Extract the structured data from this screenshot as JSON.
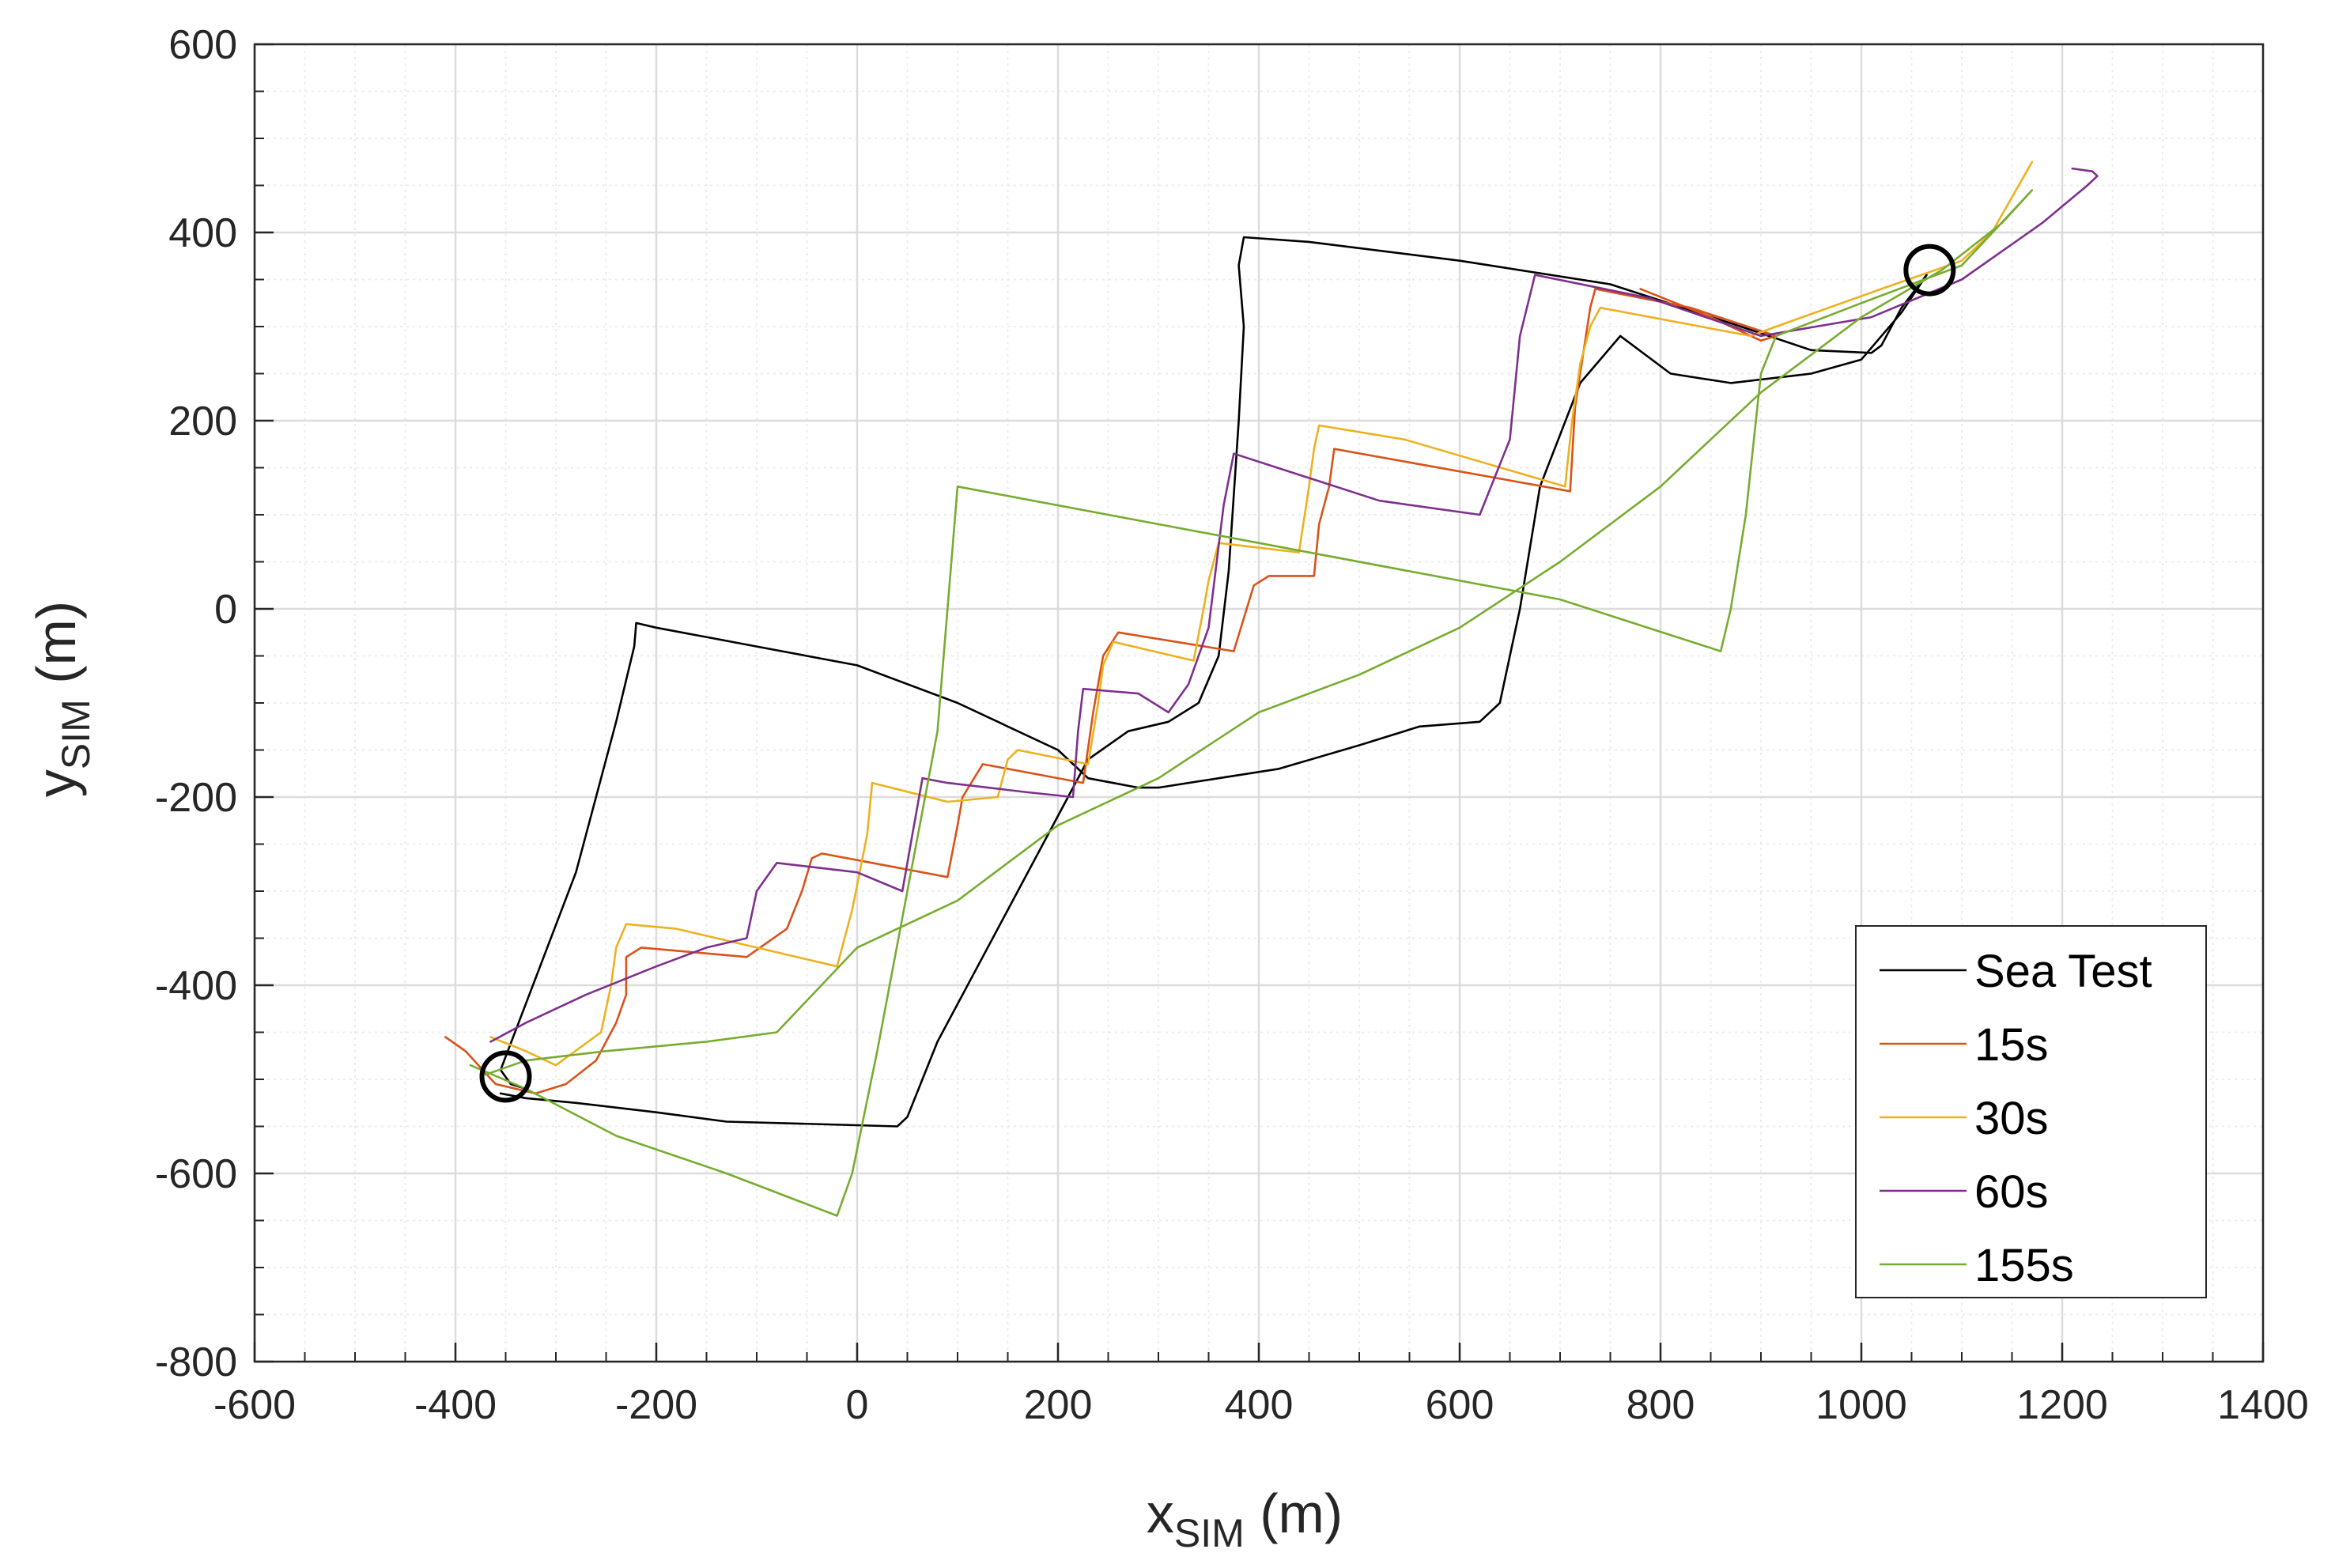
{
  "chart_data": {
    "type": "line",
    "title": "",
    "xlabel": {
      "base": "x",
      "sub": "SIM",
      "unit": " (m)"
    },
    "ylabel": {
      "base": "y",
      "sub": "SIM",
      "unit": " (m)"
    },
    "xlim": [
      -600,
      1400
    ],
    "ylim": [
      -800,
      600
    ],
    "xticks": [
      -600,
      -400,
      -200,
      0,
      200,
      400,
      600,
      800,
      1000,
      1200,
      1400
    ],
    "yticks": [
      -800,
      -600,
      -400,
      -200,
      0,
      200,
      400,
      600
    ],
    "xtick_labels": [
      "-600",
      "-400",
      "-200",
      "0",
      "200",
      "400",
      "600",
      "800",
      "1000",
      "1200",
      "1400"
    ],
    "ytick_labels": [
      "-800",
      "-600",
      "-400",
      "-200",
      "0",
      "200",
      "400",
      "600"
    ],
    "grid": true,
    "minor_grid": true,
    "legend_position": "bottom-right",
    "markers": [
      {
        "shape": "circle",
        "x": -350,
        "y": -497,
        "color": "#000000"
      },
      {
        "shape": "circle",
        "x": 1068,
        "y": 360,
        "color": "#000000"
      }
    ],
    "series": [
      {
        "name": "Sea Test",
        "color": "#000000",
        "points": [
          [
            -355,
            -515
          ],
          [
            -330,
            -520
          ],
          [
            -280,
            -525
          ],
          [
            -200,
            -535
          ],
          [
            -130,
            -545
          ],
          [
            -60,
            -547
          ],
          [
            40,
            -550
          ],
          [
            50,
            -540
          ],
          [
            80,
            -460
          ],
          [
            120,
            -380
          ],
          [
            160,
            -300
          ],
          [
            190,
            -240
          ],
          [
            230,
            -160
          ],
          [
            270,
            -130
          ],
          [
            310,
            -120
          ],
          [
            340,
            -100
          ],
          [
            360,
            -50
          ],
          [
            370,
            40
          ],
          [
            380,
            200
          ],
          [
            385,
            300
          ],
          [
            380,
            365
          ],
          [
            385,
            395
          ],
          [
            450,
            390
          ],
          [
            600,
            370
          ],
          [
            750,
            345
          ],
          [
            880,
            300
          ],
          [
            950,
            275
          ],
          [
            1010,
            272
          ],
          [
            1020,
            280
          ],
          [
            1040,
            320
          ],
          [
            1065,
            355
          ],
          [
            1040,
            315
          ],
          [
            1000,
            265
          ],
          [
            950,
            250
          ],
          [
            870,
            240
          ],
          [
            810,
            250
          ],
          [
            760,
            290
          ],
          [
            720,
            240
          ],
          [
            680,
            130
          ],
          [
            660,
            0
          ],
          [
            640,
            -100
          ],
          [
            620,
            -120
          ],
          [
            560,
            -125
          ],
          [
            500,
            -145
          ],
          [
            420,
            -170
          ],
          [
            360,
            -180
          ],
          [
            300,
            -190
          ],
          [
            280,
            -190
          ],
          [
            230,
            -180
          ],
          [
            200,
            -150
          ],
          [
            100,
            -100
          ],
          [
            0,
            -60
          ],
          [
            -100,
            -40
          ],
          [
            -200,
            -20
          ],
          [
            -220,
            -15
          ],
          [
            -222,
            -40
          ],
          [
            -240,
            -120
          ],
          [
            -280,
            -280
          ],
          [
            -330,
            -420
          ],
          [
            -355,
            -490
          ],
          [
            -345,
            -505
          ],
          [
            -330,
            -510
          ]
        ]
      },
      {
        "name": "15s",
        "color": "#d95319",
        "points": [
          [
            -410,
            -455
          ],
          [
            -390,
            -470
          ],
          [
            -360,
            -505
          ],
          [
            -320,
            -515
          ],
          [
            -290,
            -505
          ],
          [
            -260,
            -480
          ],
          [
            -240,
            -440
          ],
          [
            -230,
            -410
          ],
          [
            -230,
            -370
          ],
          [
            -215,
            -360
          ],
          [
            -110,
            -370
          ],
          [
            -70,
            -340
          ],
          [
            -55,
            -300
          ],
          [
            -45,
            -265
          ],
          [
            -35,
            -260
          ],
          [
            90,
            -285
          ],
          [
            100,
            -230
          ],
          [
            105,
            -200
          ],
          [
            125,
            -165
          ],
          [
            225,
            -185
          ],
          [
            235,
            -110
          ],
          [
            245,
            -50
          ],
          [
            260,
            -25
          ],
          [
            375,
            -45
          ],
          [
            385,
            -10
          ],
          [
            395,
            25
          ],
          [
            410,
            35
          ],
          [
            455,
            35
          ],
          [
            460,
            90
          ],
          [
            470,
            130
          ],
          [
            475,
            170
          ],
          [
            710,
            125
          ],
          [
            715,
            215
          ],
          [
            730,
            320
          ],
          [
            735,
            340
          ],
          [
            830,
            320
          ],
          [
            915,
            290
          ],
          [
            900,
            285
          ],
          [
            850,
            310
          ],
          [
            780,
            340
          ]
        ]
      },
      {
        "name": "30s",
        "color": "#edb120",
        "points": [
          [
            -365,
            -455
          ],
          [
            -330,
            -470
          ],
          [
            -300,
            -485
          ],
          [
            -255,
            -450
          ],
          [
            -245,
            -400
          ],
          [
            -240,
            -360
          ],
          [
            -230,
            -335
          ],
          [
            -180,
            -340
          ],
          [
            -20,
            -380
          ],
          [
            -5,
            -320
          ],
          [
            10,
            -240
          ],
          [
            15,
            -185
          ],
          [
            90,
            -205
          ],
          [
            140,
            -200
          ],
          [
            150,
            -160
          ],
          [
            160,
            -150
          ],
          [
            230,
            -165
          ],
          [
            240,
            -100
          ],
          [
            245,
            -60
          ],
          [
            255,
            -35
          ],
          [
            335,
            -55
          ],
          [
            345,
            0
          ],
          [
            350,
            30
          ],
          [
            360,
            70
          ],
          [
            440,
            60
          ],
          [
            450,
            130
          ],
          [
            455,
            170
          ],
          [
            460,
            195
          ],
          [
            545,
            180
          ],
          [
            705,
            130
          ],
          [
            712,
            200
          ],
          [
            720,
            260
          ],
          [
            730,
            300
          ],
          [
            740,
            320
          ],
          [
            890,
            290
          ],
          [
            915,
            300
          ],
          [
            1020,
            340
          ],
          [
            1100,
            370
          ],
          [
            1130,
            400
          ],
          [
            1170,
            475
          ]
        ]
      },
      {
        "name": "60s",
        "color": "#7e2f8e",
        "points": [
          [
            -365,
            -460
          ],
          [
            -330,
            -440
          ],
          [
            -270,
            -410
          ],
          [
            -200,
            -380
          ],
          [
            -150,
            -360
          ],
          [
            -110,
            -350
          ],
          [
            -100,
            -300
          ],
          [
            -80,
            -270
          ],
          [
            0,
            -280
          ],
          [
            45,
            -300
          ],
          [
            55,
            -240
          ],
          [
            65,
            -180
          ],
          [
            90,
            -185
          ],
          [
            170,
            -195
          ],
          [
            215,
            -200
          ],
          [
            220,
            -130
          ],
          [
            225,
            -85
          ],
          [
            280,
            -90
          ],
          [
            310,
            -110
          ],
          [
            330,
            -80
          ],
          [
            350,
            -20
          ],
          [
            365,
            110
          ],
          [
            375,
            165
          ],
          [
            520,
            115
          ],
          [
            620,
            100
          ],
          [
            650,
            180
          ],
          [
            660,
            290
          ],
          [
            675,
            355
          ],
          [
            790,
            330
          ],
          [
            900,
            290
          ],
          [
            1010,
            310
          ],
          [
            1100,
            350
          ],
          [
            1180,
            410
          ],
          [
            1225,
            450
          ],
          [
            1235,
            460
          ],
          [
            1230,
            465
          ],
          [
            1210,
            468
          ]
        ]
      },
      {
        "name": "155s",
        "color": "#77ac30",
        "points": [
          [
            -385,
            -485
          ],
          [
            -330,
            -510
          ],
          [
            -240,
            -560
          ],
          [
            -130,
            -600
          ],
          [
            -20,
            -645
          ],
          [
            -5,
            -600
          ],
          [
            20,
            -470
          ],
          [
            50,
            -300
          ],
          [
            80,
            -130
          ],
          [
            100,
            130
          ],
          [
            250,
            100
          ],
          [
            400,
            70
          ],
          [
            550,
            40
          ],
          [
            700,
            10
          ],
          [
            860,
            -45
          ],
          [
            870,
            0
          ],
          [
            885,
            100
          ],
          [
            900,
            250
          ],
          [
            915,
            290
          ],
          [
            1000,
            325
          ],
          [
            1100,
            365
          ],
          [
            1170,
            445
          ],
          [
            1140,
            410
          ],
          [
            1080,
            360
          ],
          [
            1000,
            310
          ],
          [
            900,
            230
          ],
          [
            800,
            130
          ],
          [
            700,
            50
          ],
          [
            600,
            -20
          ],
          [
            500,
            -70
          ],
          [
            400,
            -110
          ],
          [
            300,
            -180
          ],
          [
            200,
            -230
          ],
          [
            100,
            -310
          ],
          [
            0,
            -360
          ],
          [
            -80,
            -450
          ],
          [
            -150,
            -460
          ],
          [
            -250,
            -470
          ],
          [
            -330,
            -480
          ],
          [
            -370,
            -495
          ]
        ]
      }
    ]
  }
}
